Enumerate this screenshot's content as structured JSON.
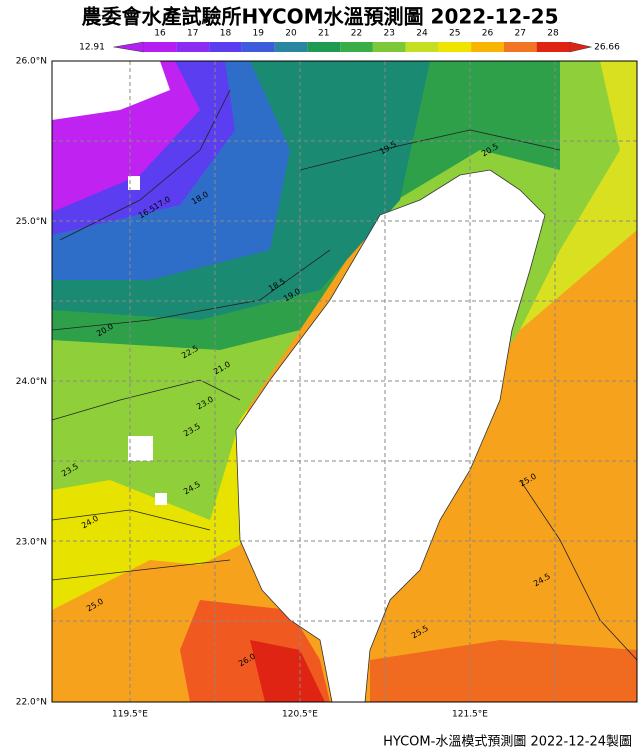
{
  "title": "農委會水產試驗所HYCOM水溫預測圖 2022-12-25",
  "colorbar": {
    "min_label": "12.91",
    "max_label": "26.66",
    "ticks": [
      16,
      17,
      18,
      19,
      20,
      21,
      22,
      23,
      24,
      25,
      26,
      27,
      28
    ],
    "colors": [
      "#b41ef2",
      "#8c2cf2",
      "#5c3cf0",
      "#3c5cdc",
      "#2a86a0",
      "#1e9a52",
      "#3aae46",
      "#7cc838",
      "#c4de22",
      "#eee400",
      "#f8b400",
      "#f27422",
      "#e02414"
    ]
  },
  "lat_labels": [
    "26.0°N",
    "25.0°N",
    "24.0°N",
    "23.0°N",
    "22.0°N"
  ],
  "lon_labels": [
    "119.5°E",
    "120.5°E",
    "121.5°E"
  ],
  "contour_labels": [
    "19.5",
    "18.0",
    "17.0",
    "16.5",
    "18.5",
    "19.0",
    "20.0",
    "20.5",
    "21.0",
    "22.5",
    "23.0",
    "23.5",
    "24.5",
    "24.0",
    "25.0",
    "25.5",
    "26.0",
    "23.5",
    "24.5",
    "25.0"
  ],
  "footer": "HYCOM-水溫模式預測圖 2022-12-24製圖"
}
